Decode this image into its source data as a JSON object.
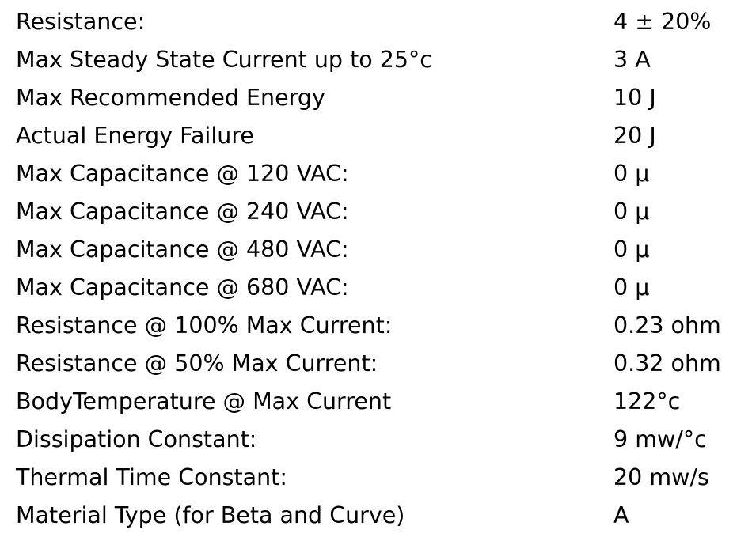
{
  "table": {
    "rows": [
      [
        "Resistance:",
        "4 ± 20%"
      ],
      [
        "Max Steady State Current up to 25°c",
        "3 A"
      ],
      [
        "Max Recommended Energy",
        "10 J"
      ],
      [
        "Actual Energy Failure",
        "20 J"
      ],
      [
        "Max Capacitance @ 120 VAC:",
        "0 µ"
      ],
      [
        "Max Capacitance @ 240 VAC:",
        "0 µ"
      ],
      [
        "Max Capacitance @ 480 VAC:",
        "0 µ"
      ],
      [
        "Max Capacitance @ 680 VAC:",
        "0 µ"
      ],
      [
        "Resistance @ 100% Max Current:",
        "0.23 ohm"
      ],
      [
        "Resistance @ 50% Max Current:",
        "0.32 ohm"
      ],
      [
        "BodyTemperature @ Max Current",
        "122°c"
      ],
      [
        "Dissipation Constant:",
        "9 mw/°c"
      ],
      [
        "Thermal Time Constant:",
        "20 mw/s"
      ],
      [
        "Material Type (for Beta and Curve)",
        "A"
      ]
    ]
  }
}
